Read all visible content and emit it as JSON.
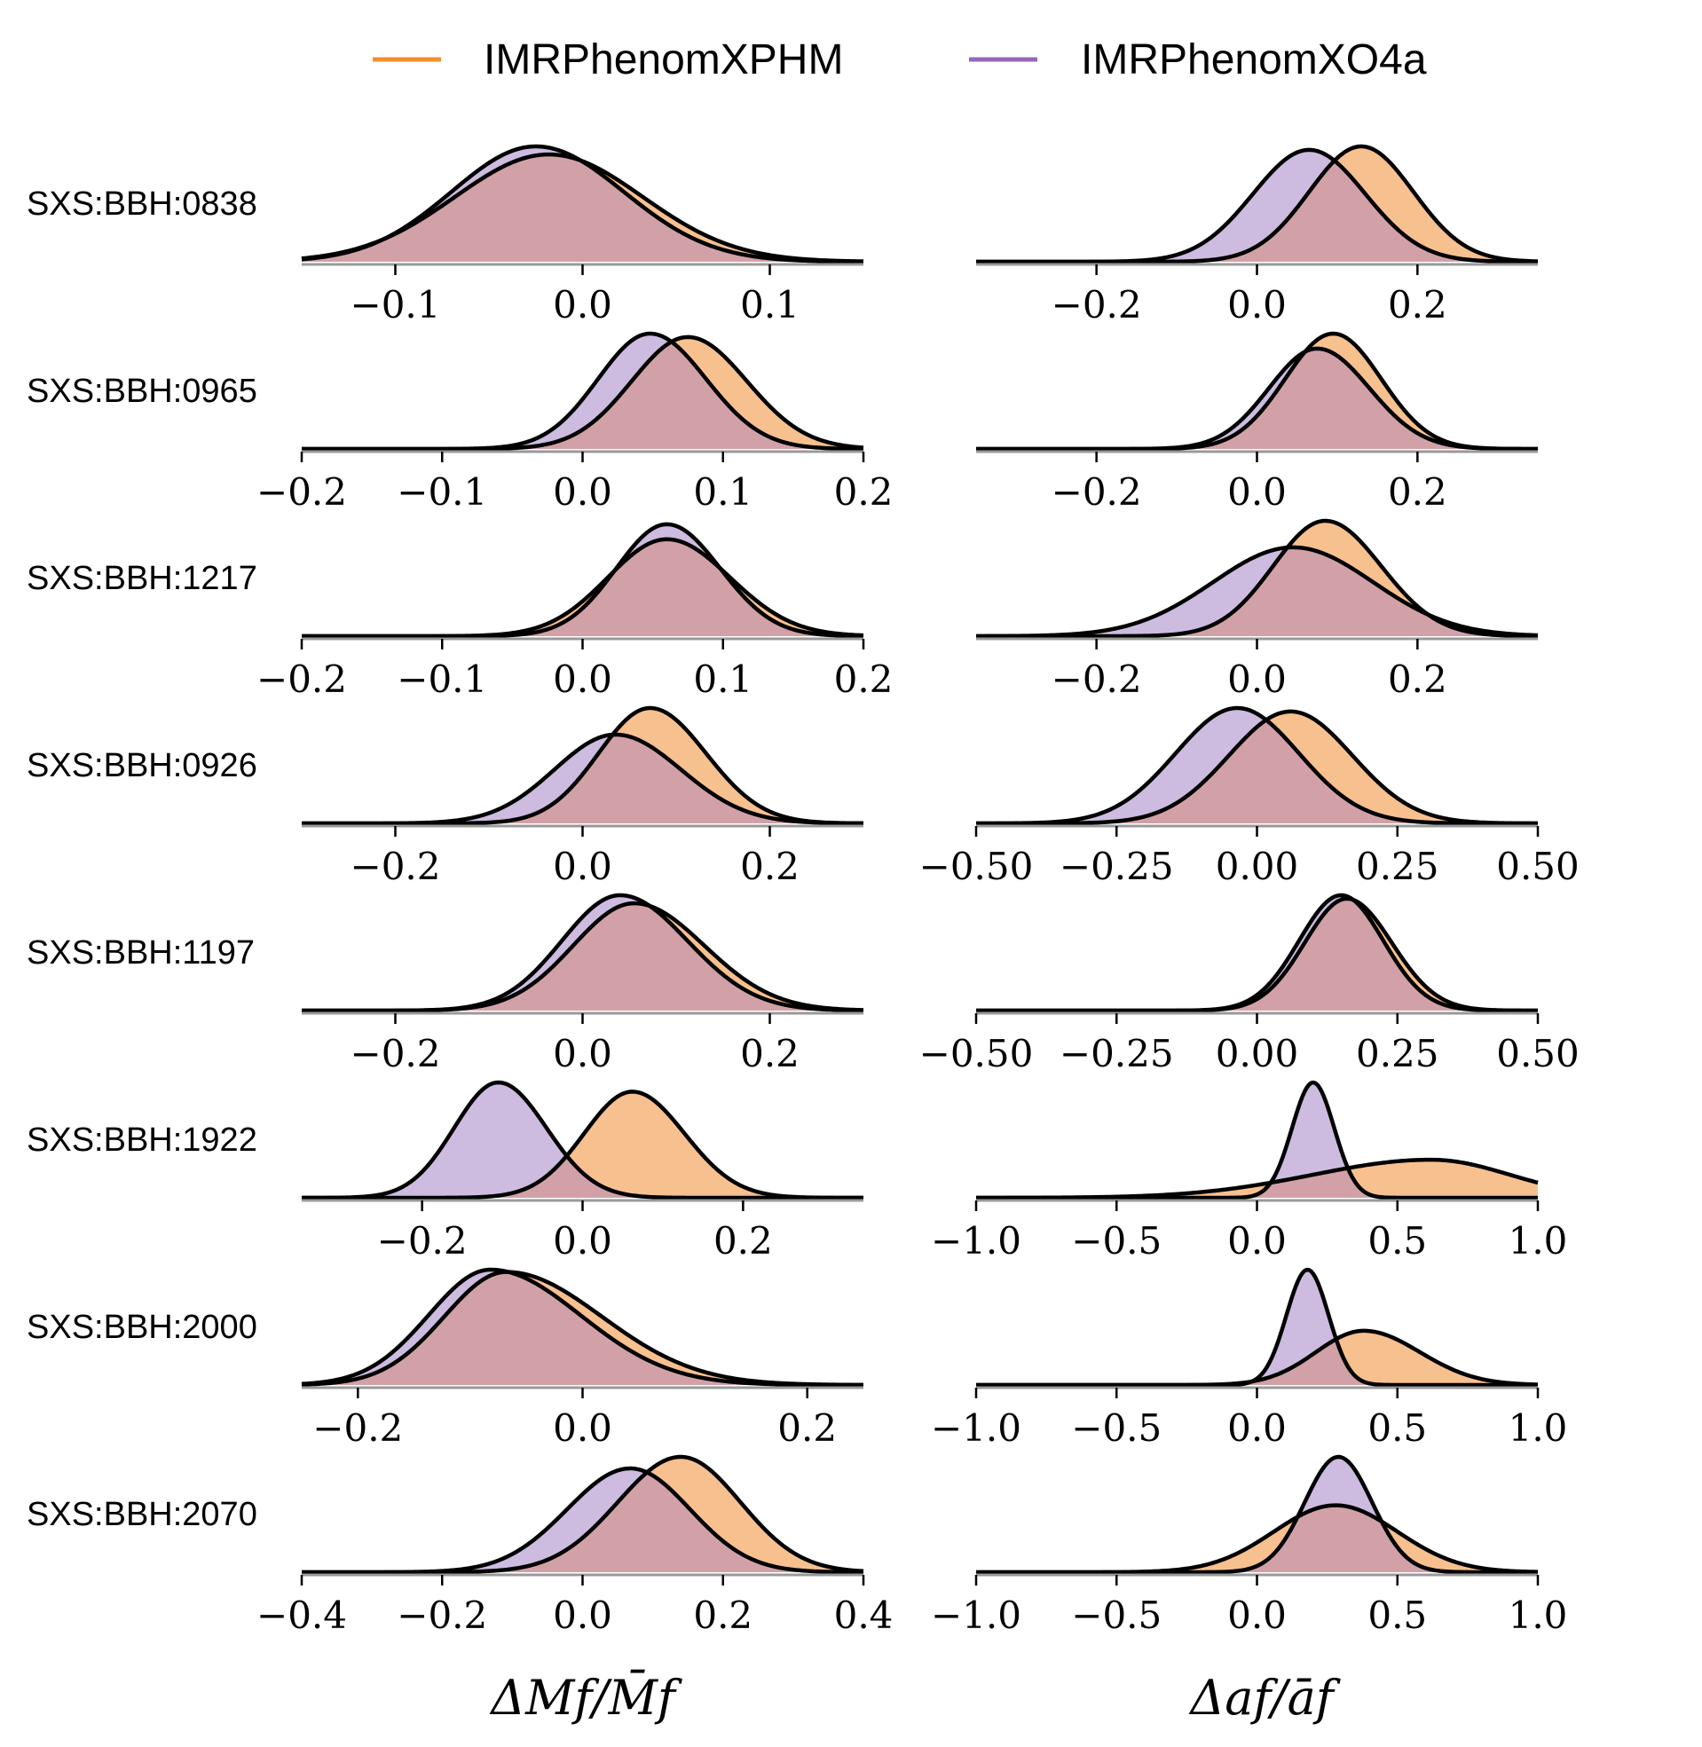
{
  "legend": {
    "entries": [
      {
        "label": "IMRPhenomXPHM",
        "color": "#f28e2b"
      },
      {
        "label": "IMRPhenomXO4a",
        "color": "#9467bd"
      }
    ]
  },
  "colors": {
    "xphm_fill": "#f7c08f",
    "xo4a_fill": "#cdbbe0",
    "overlap_fill": "#d2a1a8",
    "outline": "#000000",
    "baseline": "#999999"
  },
  "axis_titles": {
    "left": "ΔMf/M̄f",
    "right": "Δaf/āf"
  },
  "chart_data": [
    {
      "type": "area",
      "row_label": "SXS:BBH:0838",
      "panel": "mass",
      "xlim": [
        -0.15,
        0.15
      ],
      "ticks": [
        -0.1,
        0.0,
        0.1
      ],
      "tick_labels": [
        "−0.1",
        "0.0",
        "0.1"
      ],
      "series": [
        {
          "name": "IMRPhenomXPHM",
          "mean": -0.018,
          "sigma_left": 0.05,
          "sigma_right": 0.05,
          "peak": 0.93
        },
        {
          "name": "IMRPhenomXO4a",
          "mean": -0.025,
          "sigma_left": 0.045,
          "sigma_right": 0.047,
          "peak": 1.0
        }
      ]
    },
    {
      "type": "area",
      "row_label": "SXS:BBH:0838",
      "panel": "spin",
      "xlim": [
        -0.35,
        0.35
      ],
      "ticks": [
        -0.2,
        0.0,
        0.2
      ],
      "tick_labels": [
        "−0.2",
        "0.0",
        "0.2"
      ],
      "series": [
        {
          "name": "IMRPhenomXPHM",
          "mean": 0.13,
          "sigma_left": 0.065,
          "sigma_right": 0.065,
          "peak": 1.0
        },
        {
          "name": "IMRPhenomXO4a",
          "mean": 0.065,
          "sigma_left": 0.07,
          "sigma_right": 0.07,
          "peak": 0.97
        }
      ]
    },
    {
      "type": "area",
      "row_label": "SXS:BBH:0965",
      "panel": "mass",
      "xlim": [
        -0.2,
        0.2
      ],
      "ticks": [
        -0.2,
        -0.1,
        0.0,
        0.1,
        0.2
      ],
      "tick_labels": [
        "−0.2",
        "−0.1",
        "0.0",
        "0.1",
        "0.2"
      ],
      "series": [
        {
          "name": "IMRPhenomXPHM",
          "mean": 0.075,
          "sigma_left": 0.04,
          "sigma_right": 0.042,
          "peak": 0.97
        },
        {
          "name": "IMRPhenomXO4a",
          "mean": 0.048,
          "sigma_left": 0.037,
          "sigma_right": 0.04,
          "peak": 1.0
        }
      ]
    },
    {
      "type": "area",
      "row_label": "SXS:BBH:0965",
      "panel": "spin",
      "xlim": [
        -0.35,
        0.35
      ],
      "ticks": [
        -0.2,
        0.0,
        0.2
      ],
      "tick_labels": [
        "−0.2",
        "0.0",
        "0.2"
      ],
      "series": [
        {
          "name": "IMRPhenomXPHM",
          "mean": 0.095,
          "sigma_left": 0.06,
          "sigma_right": 0.06,
          "peak": 1.0
        },
        {
          "name": "IMRPhenomXO4a",
          "mean": 0.075,
          "sigma_left": 0.06,
          "sigma_right": 0.065,
          "peak": 0.87
        }
      ]
    },
    {
      "type": "area",
      "row_label": "SXS:BBH:1217",
      "panel": "mass",
      "xlim": [
        -0.2,
        0.2
      ],
      "ticks": [
        -0.2,
        -0.1,
        0.0,
        0.1,
        0.2
      ],
      "tick_labels": [
        "−0.2",
        "−0.1",
        "0.0",
        "0.1",
        "0.2"
      ],
      "series": [
        {
          "name": "IMRPhenomXPHM",
          "mean": 0.06,
          "sigma_left": 0.042,
          "sigma_right": 0.045,
          "peak": 0.84
        },
        {
          "name": "IMRPhenomXO4a",
          "mean": 0.06,
          "sigma_left": 0.036,
          "sigma_right": 0.038,
          "peak": 0.97
        }
      ]
    },
    {
      "type": "area",
      "row_label": "SXS:BBH:1217",
      "panel": "spin",
      "xlim": [
        -0.35,
        0.35
      ],
      "ticks": [
        -0.2,
        0.0,
        0.2
      ],
      "tick_labels": [
        "−0.2",
        "0.0",
        "0.2"
      ],
      "series": [
        {
          "name": "IMRPhenomXPHM",
          "mean": 0.085,
          "sigma_left": 0.065,
          "sigma_right": 0.07,
          "peak": 1.0
        },
        {
          "name": "IMRPhenomXO4a",
          "mean": 0.045,
          "sigma_left": 0.1,
          "sigma_right": 0.1,
          "peak": 0.77
        }
      ]
    },
    {
      "type": "area",
      "row_label": "SXS:BBH:0926",
      "panel": "mass",
      "xlim": [
        -0.3,
        0.3
      ],
      "ticks": [
        -0.2,
        0.0,
        0.2
      ],
      "tick_labels": [
        "−0.2",
        "0.0",
        "0.2"
      ],
      "series": [
        {
          "name": "IMRPhenomXPHM",
          "mean": 0.072,
          "sigma_left": 0.055,
          "sigma_right": 0.06,
          "peak": 1.0
        },
        {
          "name": "IMRPhenomXO4a",
          "mean": 0.035,
          "sigma_left": 0.065,
          "sigma_right": 0.07,
          "peak": 0.77
        }
      ]
    },
    {
      "type": "area",
      "row_label": "SXS:BBH:0926",
      "panel": "spin",
      "xlim": [
        -0.5,
        0.5
      ],
      "ticks": [
        -0.5,
        -0.25,
        0.0,
        0.25,
        0.5
      ],
      "tick_labels": [
        "−0.50",
        "−0.25",
        "0.00",
        "0.25",
        "0.50"
      ],
      "series": [
        {
          "name": "IMRPhenomXPHM",
          "mean": 0.06,
          "sigma_left": 0.11,
          "sigma_right": 0.11,
          "peak": 0.97
        },
        {
          "name": "IMRPhenomXO4a",
          "mean": -0.035,
          "sigma_left": 0.11,
          "sigma_right": 0.11,
          "peak": 1.0
        }
      ]
    },
    {
      "type": "area",
      "row_label": "SXS:BBH:1197",
      "panel": "mass",
      "xlim": [
        -0.3,
        0.3
      ],
      "ticks": [
        -0.2,
        0.0,
        0.2
      ],
      "tick_labels": [
        "−0.2",
        "0.0",
        "0.2"
      ],
      "series": [
        {
          "name": "IMRPhenomXPHM",
          "mean": 0.055,
          "sigma_left": 0.065,
          "sigma_right": 0.075,
          "peak": 0.93
        },
        {
          "name": "IMRPhenomXO4a",
          "mean": 0.04,
          "sigma_left": 0.062,
          "sigma_right": 0.072,
          "peak": 1.0
        }
      ]
    },
    {
      "type": "area",
      "row_label": "SXS:BBH:1197",
      "panel": "spin",
      "xlim": [
        -0.5,
        0.5
      ],
      "ticks": [
        -0.5,
        -0.25,
        0.0,
        0.25,
        0.5
      ],
      "tick_labels": [
        "−0.50",
        "−0.25",
        "0.00",
        "0.25",
        "0.50"
      ],
      "series": [
        {
          "name": "IMRPhenomXPHM",
          "mean": 0.16,
          "sigma_left": 0.075,
          "sigma_right": 0.08,
          "peak": 0.97
        },
        {
          "name": "IMRPhenomXO4a",
          "mean": 0.15,
          "sigma_left": 0.075,
          "sigma_right": 0.075,
          "peak": 1.0
        }
      ]
    },
    {
      "type": "area",
      "row_label": "SXS:BBH:1922",
      "panel": "mass",
      "xlim": [
        -0.35,
        0.35
      ],
      "ticks": [
        -0.2,
        0.0,
        0.2
      ],
      "tick_labels": [
        "−0.2",
        "0.0",
        "0.2"
      ],
      "series": [
        {
          "name": "IMRPhenomXPHM",
          "mean": 0.062,
          "sigma_left": 0.06,
          "sigma_right": 0.065,
          "peak": 0.92
        },
        {
          "name": "IMRPhenomXO4a",
          "mean": -0.105,
          "sigma_left": 0.055,
          "sigma_right": 0.06,
          "peak": 1.0
        }
      ]
    },
    {
      "type": "area",
      "row_label": "SXS:BBH:1922",
      "panel": "spin",
      "xlim": [
        -1.0,
        1.0
      ],
      "ticks": [
        -1.0,
        -0.5,
        0.0,
        0.5,
        1.0
      ],
      "tick_labels": [
        "−1.0",
        "−0.5",
        "0.0",
        "0.5",
        "1.0"
      ],
      "series": [
        {
          "name": "IMRPhenomXPHM",
          "mean": 0.62,
          "sigma_left": 0.42,
          "sigma_right": 0.28,
          "peak": 0.33
        },
        {
          "name": "IMRPhenomXO4a",
          "mean": 0.2,
          "sigma_left": 0.075,
          "sigma_right": 0.075,
          "peak": 1.0
        }
      ]
    },
    {
      "type": "area",
      "row_label": "SXS:BBH:2000",
      "panel": "mass",
      "xlim": [
        -0.25,
        0.25
      ],
      "ticks": [
        -0.2,
        0.0,
        0.2
      ],
      "tick_labels": [
        "−0.2",
        "0.0",
        "0.2"
      ],
      "series": [
        {
          "name": "IMRPhenomXPHM",
          "mean": -0.068,
          "sigma_left": 0.055,
          "sigma_right": 0.085,
          "peak": 0.98
        },
        {
          "name": "IMRPhenomXO4a",
          "mean": -0.082,
          "sigma_left": 0.055,
          "sigma_right": 0.08,
          "peak": 1.0
        }
      ]
    },
    {
      "type": "area",
      "row_label": "SXS:BBH:2000",
      "panel": "spin",
      "xlim": [
        -1.0,
        1.0
      ],
      "ticks": [
        -1.0,
        -0.5,
        0.0,
        0.5,
        1.0
      ],
      "tick_labels": [
        "−1.0",
        "−0.5",
        "0.0",
        "0.5",
        "1.0"
      ],
      "series": [
        {
          "name": "IMRPhenomXPHM",
          "mean": 0.38,
          "sigma_left": 0.17,
          "sigma_right": 0.2,
          "peak": 0.47
        },
        {
          "name": "IMRPhenomXO4a",
          "mean": 0.18,
          "sigma_left": 0.075,
          "sigma_right": 0.075,
          "peak": 1.0
        }
      ]
    },
    {
      "type": "area",
      "row_label": "SXS:BBH:2070",
      "panel": "mass",
      "xlim": [
        -0.4,
        0.4
      ],
      "ticks": [
        -0.4,
        -0.2,
        0.0,
        0.2,
        0.4
      ],
      "tick_labels": [
        "−0.4",
        "−0.2",
        "0.0",
        "0.2",
        "0.4"
      ],
      "series": [
        {
          "name": "IMRPhenomXPHM",
          "mean": 0.14,
          "sigma_left": 0.09,
          "sigma_right": 0.085,
          "peak": 1.0
        },
        {
          "name": "IMRPhenomXO4a",
          "mean": 0.068,
          "sigma_left": 0.09,
          "sigma_right": 0.085,
          "peak": 0.9
        }
      ]
    },
    {
      "type": "area",
      "row_label": "SXS:BBH:2070",
      "panel": "spin",
      "xlim": [
        -1.0,
        1.0
      ],
      "ticks": [
        -1.0,
        -0.5,
        0.0,
        0.5,
        1.0
      ],
      "tick_labels": [
        "−1.0",
        "−0.5",
        "0.0",
        "0.5",
        "1.0"
      ],
      "series": [
        {
          "name": "IMRPhenomXPHM",
          "mean": 0.28,
          "sigma_left": 0.22,
          "sigma_right": 0.22,
          "peak": 0.58
        },
        {
          "name": "IMRPhenomXO4a",
          "mean": 0.29,
          "sigma_left": 0.12,
          "sigma_right": 0.12,
          "peak": 1.0
        }
      ]
    }
  ]
}
